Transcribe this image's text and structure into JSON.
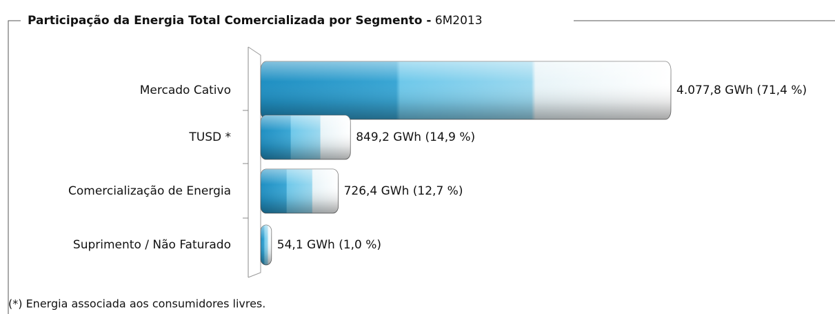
{
  "chart_data": {
    "type": "bar",
    "orientation": "horizontal",
    "title": "Participação da Energia Total Comercializada por Segmento -",
    "period": "6M2013",
    "categories": [
      "Mercado Cativo",
      "TUSD *",
      "Comercialização de Energia",
      "Suprimento / Não Faturado"
    ],
    "values": [
      4077.8,
      849.2,
      726.4,
      54.1
    ],
    "value_labels": [
      "4.077,8 GWh  (71,4 %)",
      "849,2 GWh  (14,9 %)",
      "726,4  GWh  (12,7 %)",
      "54,1 GWh  (1,0 %)"
    ],
    "color": "#2a9fd0",
    "note": "(*) Energia associada aos consumidores livres."
  }
}
